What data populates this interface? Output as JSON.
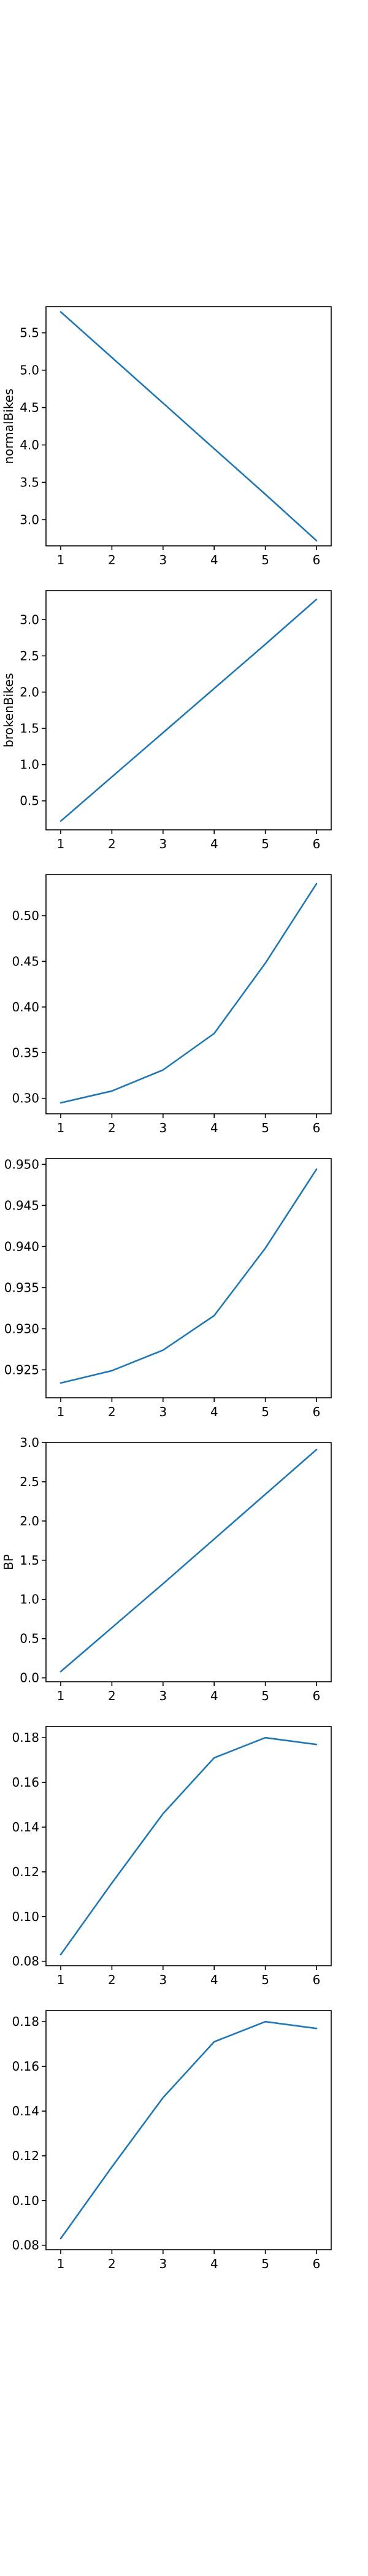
{
  "chart_data": [
    {
      "type": "line",
      "x": [
        1,
        2,
        3,
        4,
        5,
        6
      ],
      "xticks": [
        "1",
        "2",
        "3",
        "4",
        "5",
        "6"
      ],
      "ylabel": "normalBikes",
      "ylim": [
        2.65,
        5.85
      ],
      "yticks": [
        "3.0",
        "3.5",
        "4.0",
        "4.5",
        "5.0",
        "5.5"
      ],
      "series": [
        {
          "values": [
            5.78,
            5.17,
            4.56,
            3.95,
            3.34,
            2.72
          ],
          "color": "#1f77b4"
        }
      ],
      "grid": false
    },
    {
      "type": "line",
      "x": [
        1,
        2,
        3,
        4,
        5,
        6
      ],
      "xticks": [
        "1",
        "2",
        "3",
        "4",
        "5",
        "6"
      ],
      "ylabel": "brokenBikes",
      "ylim": [
        0.1,
        3.4
      ],
      "yticks": [
        "0.5",
        "1.0",
        "1.5",
        "2.0",
        "2.5",
        "3.0"
      ],
      "series": [
        {
          "values": [
            0.22,
            0.83,
            1.44,
            2.05,
            2.66,
            3.28
          ],
          "color": "#1f77b4"
        }
      ],
      "grid": false
    },
    {
      "type": "line",
      "x": [
        1,
        2,
        3,
        4,
        5,
        6
      ],
      "xticks": [
        "1",
        "2",
        "3",
        "4",
        "5",
        "6"
      ],
      "ylabel": "",
      "ylim": [
        0.283,
        0.545
      ],
      "yticks": [
        "0.30",
        "0.35",
        "0.40",
        "0.45",
        "0.50"
      ],
      "series": [
        {
          "values": [
            0.295,
            0.308,
            0.331,
            0.371,
            0.448,
            0.535
          ],
          "color": "#1f77b4"
        }
      ],
      "grid": false
    },
    {
      "type": "line",
      "x": [
        1,
        2,
        3,
        4,
        5,
        6
      ],
      "xticks": [
        "1",
        "2",
        "3",
        "4",
        "5",
        "6"
      ],
      "ylabel": "",
      "ylim": [
        0.9216,
        0.9507
      ],
      "yticks": [
        "0.925",
        "0.930",
        "0.935",
        "0.940",
        "0.945",
        "0.950"
      ],
      "series": [
        {
          "values": [
            0.9234,
            0.9249,
            0.9274,
            0.9316,
            0.9398,
            0.9494
          ],
          "color": "#1f77b4"
        }
      ],
      "grid": false
    },
    {
      "type": "line",
      "x": [
        1,
        2,
        3,
        4,
        5,
        6
      ],
      "xticks": [
        "1",
        "2",
        "3",
        "4",
        "5",
        "6"
      ],
      "ylabel": "BP",
      "ylim": [
        -0.05,
        3.0
      ],
      "yticks": [
        "0.0",
        "0.5",
        "1.0",
        "1.5",
        "2.0",
        "2.5",
        "3.0"
      ],
      "series": [
        {
          "values": [
            0.08,
            0.64,
            1.2,
            1.77,
            2.34,
            2.91
          ],
          "color": "#1f77b4"
        }
      ],
      "grid": false
    },
    {
      "type": "line",
      "x": [
        1,
        2,
        3,
        4,
        5,
        6
      ],
      "xticks": [
        "1",
        "2",
        "3",
        "4",
        "5",
        "6"
      ],
      "ylabel": "",
      "ylim": [
        0.078,
        0.185
      ],
      "yticks": [
        "0.08",
        "0.10",
        "0.12",
        "0.14",
        "0.16",
        "0.18"
      ],
      "series": [
        {
          "values": [
            0.083,
            0.115,
            0.146,
            0.171,
            0.18,
            0.177
          ],
          "color": "#1f77b4"
        }
      ],
      "grid": false
    },
    {
      "type": "line",
      "x": [
        1,
        2,
        3,
        4,
        5,
        6
      ],
      "xticks": [
        "1",
        "2",
        "3",
        "4",
        "5",
        "6"
      ],
      "ylabel": "",
      "ylim": [
        0.078,
        0.185
      ],
      "yticks": [
        "0.08",
        "0.10",
        "0.12",
        "0.14",
        "0.16",
        "0.18"
      ],
      "series": [
        {
          "values": [
            0.083,
            0.115,
            0.146,
            0.171,
            0.18,
            0.177
          ],
          "color": "#1f77b4"
        }
      ],
      "grid": false
    }
  ]
}
